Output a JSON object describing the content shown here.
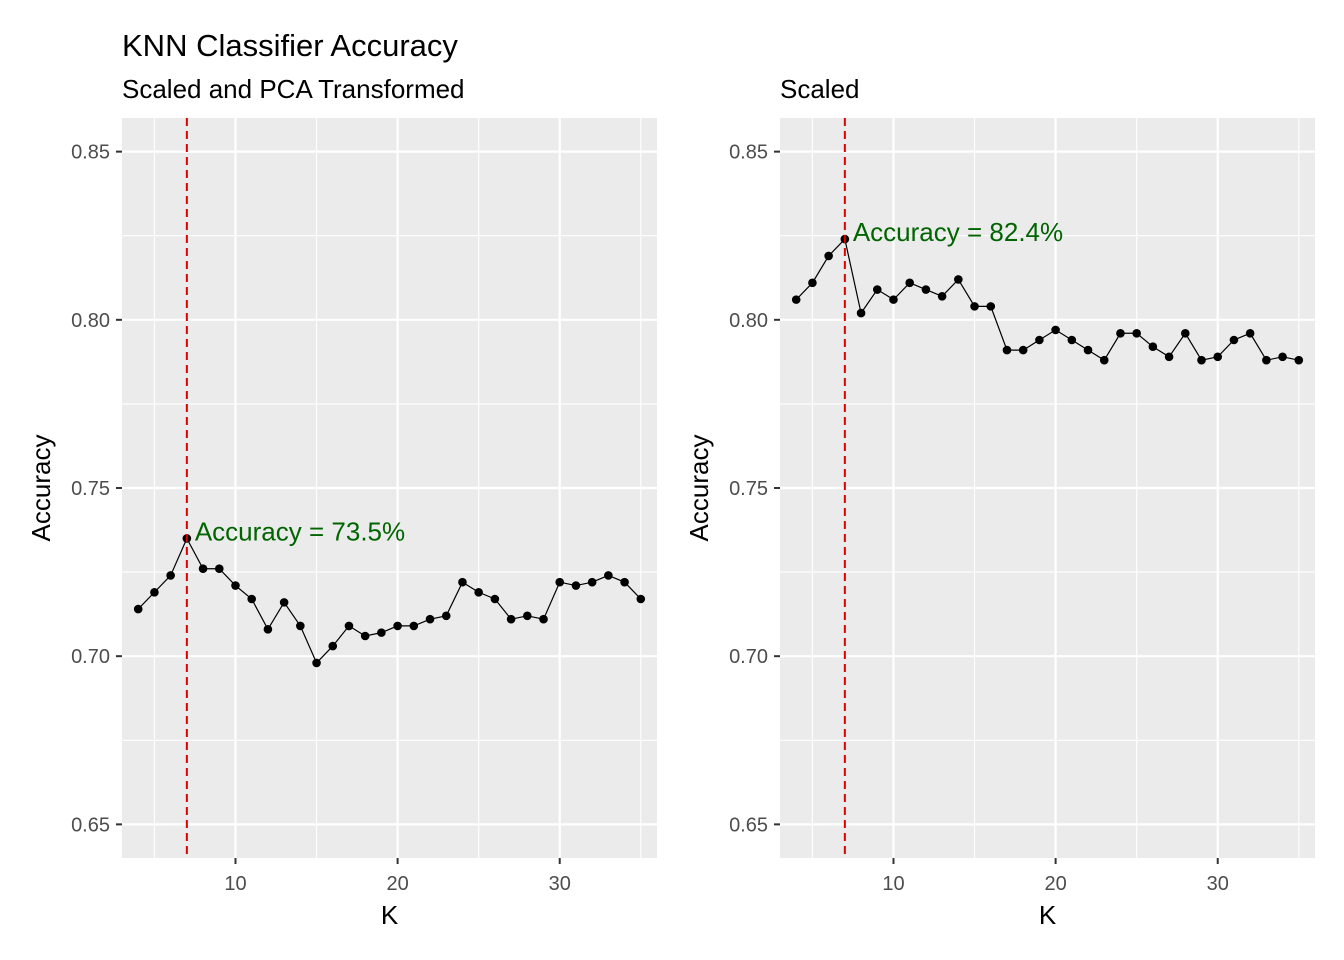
{
  "chart_title": "KNN Classifier Accuracy",
  "colors": {
    "panel_background": "#ebebeb",
    "grid": "#ffffff",
    "line": "#000000",
    "point": "#000000",
    "reference_line": "#e00000",
    "annotation": "#006400",
    "tick_text": "#4d4d4d"
  },
  "chart_data": [
    {
      "type": "line",
      "subtitle": "Scaled and PCA Transformed",
      "xlabel": "K",
      "ylabel": "Accuracy",
      "xlim": [
        3,
        36
      ],
      "ylim": [
        0.64,
        0.86
      ],
      "xticks": [
        10,
        20,
        30
      ],
      "xtick_labels": [
        "10",
        "20",
        "30"
      ],
      "yticks": [
        0.65,
        0.7,
        0.75,
        0.8,
        0.85
      ],
      "ytick_labels": [
        "0.65",
        "0.70",
        "0.75",
        "0.80",
        "0.85"
      ],
      "grid": true,
      "markers": true,
      "x": [
        4,
        5,
        6,
        7,
        8,
        9,
        10,
        11,
        12,
        13,
        14,
        15,
        16,
        17,
        18,
        19,
        20,
        21,
        22,
        23,
        24,
        25,
        26,
        27,
        28,
        29,
        30,
        31,
        32,
        33,
        34,
        35
      ],
      "values": [
        0.714,
        0.719,
        0.724,
        0.735,
        0.726,
        0.726,
        0.721,
        0.717,
        0.708,
        0.716,
        0.709,
        0.698,
        0.703,
        0.709,
        0.706,
        0.707,
        0.709,
        0.709,
        0.711,
        0.712,
        0.722,
        0.719,
        0.717,
        0.711,
        0.712,
        0.711,
        0.722,
        0.721,
        0.722,
        0.724,
        0.722,
        0.717
      ],
      "vline_x": 7,
      "annotation": {
        "text": "Accuracy = 73.5%",
        "x": 7,
        "y": 0.735
      }
    },
    {
      "type": "line",
      "subtitle": "Scaled",
      "xlabel": "K",
      "ylabel": "Accuracy",
      "xlim": [
        3,
        36
      ],
      "ylim": [
        0.64,
        0.86
      ],
      "xticks": [
        10,
        20,
        30
      ],
      "xtick_labels": [
        "10",
        "20",
        "30"
      ],
      "yticks": [
        0.65,
        0.7,
        0.75,
        0.8,
        0.85
      ],
      "ytick_labels": [
        "0.65",
        "0.70",
        "0.75",
        "0.80",
        "0.85"
      ],
      "grid": true,
      "markers": true,
      "x": [
        4,
        5,
        6,
        7,
        8,
        9,
        10,
        11,
        12,
        13,
        14,
        15,
        16,
        17,
        18,
        19,
        20,
        21,
        22,
        23,
        24,
        25,
        26,
        27,
        28,
        29,
        30,
        31,
        32,
        33,
        34,
        35
      ],
      "values": [
        0.806,
        0.811,
        0.819,
        0.824,
        0.802,
        0.809,
        0.806,
        0.811,
        0.809,
        0.807,
        0.812,
        0.804,
        0.804,
        0.791,
        0.791,
        0.794,
        0.797,
        0.794,
        0.791,
        0.788,
        0.796,
        0.796,
        0.792,
        0.789,
        0.796,
        0.788,
        0.789,
        0.794,
        0.796,
        0.788,
        0.789,
        0.788
      ],
      "vline_x": 7,
      "annotation": {
        "text": "Accuracy = 82.4%",
        "x": 7,
        "y": 0.824
      }
    }
  ]
}
